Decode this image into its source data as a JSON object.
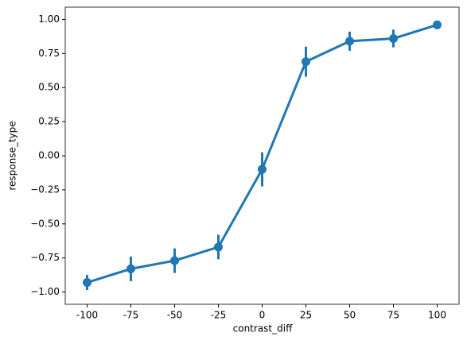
{
  "chart_data": {
    "type": "point",
    "x_label": "contrast_diff",
    "y_label": "response_type",
    "categories": [
      "-100",
      "-75",
      "-50",
      "-25",
      "0",
      "25",
      "50",
      "75",
      "100"
    ],
    "values": [
      -0.93,
      -0.83,
      -0.77,
      -0.67,
      -0.1,
      0.69,
      0.84,
      0.86,
      0.96
    ],
    "errors": [
      0.055,
      0.09,
      0.09,
      0.09,
      0.125,
      0.11,
      0.07,
      0.065,
      0.02
    ],
    "color": "#1f77b4",
    "ylim": [
      -1.09,
      1.09
    ],
    "yticks": [
      {
        "value": -1,
        "label": "−1.00"
      },
      {
        "value": -0.75,
        "label": "−0.75"
      },
      {
        "value": -0.5,
        "label": "−0.50"
      },
      {
        "value": -0.25,
        "label": "−0.25"
      },
      {
        "value": 0,
        "label": "0.00"
      },
      {
        "value": 0.25,
        "label": "0.25"
      },
      {
        "value": 0.5,
        "label": "0.50"
      },
      {
        "value": 0.75,
        "label": "0.75"
      },
      {
        "value": 1,
        "label": "1.00"
      }
    ]
  }
}
